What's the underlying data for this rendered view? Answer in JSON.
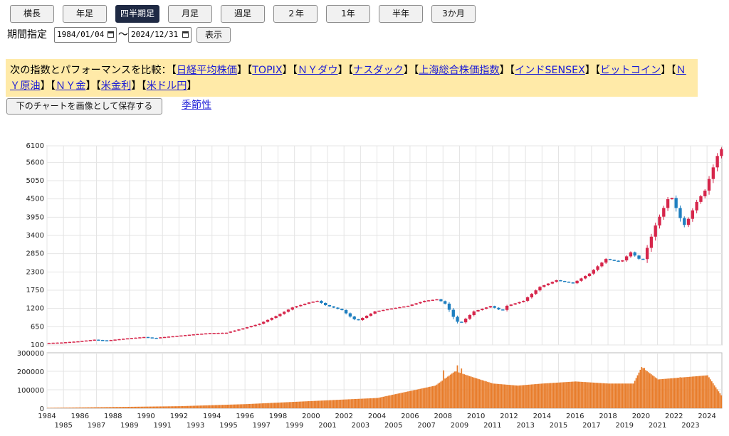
{
  "tabs": [
    {
      "label": "横長",
      "active": false
    },
    {
      "label": "年足",
      "active": false
    },
    {
      "label": "四半期足",
      "active": true
    },
    {
      "label": "月足",
      "active": false
    },
    {
      "label": "週足",
      "active": false
    },
    {
      "label": "２年",
      "active": false
    },
    {
      "label": "1年",
      "active": false
    },
    {
      "label": "半年",
      "active": false
    },
    {
      "label": "3か月",
      "active": false
    }
  ],
  "period": {
    "label": "期間指定",
    "start": "1984/01/04",
    "end": "2024/12/31",
    "separator": "〜",
    "show_button": "表示"
  },
  "compare": {
    "prefix": "次の指数とパフォーマンスを比較：",
    "links": [
      "日経平均株価",
      "TOPIX",
      "ＮＹダウ",
      "ナスダック",
      "上海総合株価指数",
      "インドSENSEX",
      "ビットコイン",
      "ＮＹ原油",
      "ＮＹ金",
      "米金利",
      "米ドル円"
    ]
  },
  "save_button": "下のチャートを画像として保存する",
  "seasonal_link": "季節性",
  "colors": {
    "up": "#d6264b",
    "down": "#1f7fc0",
    "volume": "#e87c2a",
    "active_tab": "#1f2a44",
    "compare_bg": "#ffeaa8",
    "link": "#1a1ad6"
  },
  "chart_data": {
    "type": "candlestick",
    "price_ticks": [
      100,
      650,
      1200,
      1750,
      2300,
      2850,
      3400,
      3950,
      4500,
      5050,
      5600,
      6100
    ],
    "price_range": [
      100,
      6100
    ],
    "volume_ticks": [
      "300000",
      "200000",
      "100000",
      "0"
    ],
    "volume_range": [
      0,
      300000
    ],
    "x_labels_top": [
      "1984",
      "1986",
      "1988",
      "1990",
      "1992",
      "1994",
      "1996",
      "1998",
      "2000",
      "2002",
      "2004",
      "2006",
      "2008",
      "2010",
      "2012",
      "2014",
      "2016",
      "2018",
      "2020",
      "2022",
      "2024"
    ],
    "x_labels_bottom": [
      "1985",
      "1987",
      "1989",
      "1991",
      "1993",
      "1995",
      "1997",
      "1999",
      "2001",
      "2003",
      "2005",
      "2007",
      "2009",
      "2011",
      "2013",
      "2015",
      "2017",
      "2019",
      "2021",
      "2023"
    ],
    "x_range": [
      1984,
      2024.9
    ],
    "grid": true,
    "price_path": [
      [
        1984.0,
        160
      ],
      [
        1985.0,
        175
      ],
      [
        1986.0,
        210
      ],
      [
        1987.0,
        260
      ],
      [
        1987.8,
        230
      ],
      [
        1988.0,
        250
      ],
      [
        1989.0,
        300
      ],
      [
        1990.0,
        340
      ],
      [
        1990.7,
        305
      ],
      [
        1991.0,
        330
      ],
      [
        1992.0,
        375
      ],
      [
        1993.0,
        420
      ],
      [
        1994.0,
        460
      ],
      [
        1995.0,
        470
      ],
      [
        1996.0,
        600
      ],
      [
        1997.0,
        740
      ],
      [
        1998.0,
        970
      ],
      [
        1999.0,
        1230
      ],
      [
        2000.0,
        1380
      ],
      [
        2000.5,
        1430
      ],
      [
        2001.0,
        1300
      ],
      [
        2002.0,
        1150
      ],
      [
        2002.7,
        880
      ],
      [
        2003.0,
        850
      ],
      [
        2004.0,
        1110
      ],
      [
        2005.0,
        1200
      ],
      [
        2006.0,
        1280
      ],
      [
        2007.0,
        1430
      ],
      [
        2007.8,
        1480
      ],
      [
        2008.3,
        1330
      ],
      [
        2008.9,
        820
      ],
      [
        2009.2,
        760
      ],
      [
        2010.0,
        1110
      ],
      [
        2011.0,
        1270
      ],
      [
        2011.7,
        1130
      ],
      [
        2012.0,
        1280
      ],
      [
        2013.0,
        1430
      ],
      [
        2014.0,
        1850
      ],
      [
        2015.0,
        2050
      ],
      [
        2015.8,
        1980
      ],
      [
        2016.0,
        1960
      ],
      [
        2017.0,
        2250
      ],
      [
        2018.0,
        2690
      ],
      [
        2018.9,
        2600
      ],
      [
        2019.5,
        2890
      ],
      [
        2020.2,
        2620
      ],
      [
        2021.0,
        3700
      ],
      [
        2021.9,
        4650
      ],
      [
        2022.7,
        3680
      ],
      [
        2023.0,
        3900
      ],
      [
        2023.5,
        4410
      ],
      [
        2024.0,
        4750
      ],
      [
        2024.5,
        5450
      ],
      [
        2024.9,
        6000
      ]
    ],
    "volume_path": [
      [
        1984.0,
        2000
      ],
      [
        1988.0,
        6000
      ],
      [
        1992.0,
        10000
      ],
      [
        1996.0,
        20000
      ],
      [
        2000.0,
        35000
      ],
      [
        2004.0,
        50000
      ],
      [
        2007.5,
        110000
      ],
      [
        2008.7,
        180000
      ],
      [
        2009.8,
        150000
      ],
      [
        2011.0,
        120000
      ],
      [
        2012.5,
        110000
      ],
      [
        2014.0,
        120000
      ],
      [
        2016.0,
        130000
      ],
      [
        2018.0,
        120000
      ],
      [
        2019.5,
        120000
      ],
      [
        2020.0,
        200000
      ],
      [
        2021.0,
        140000
      ],
      [
        2022.5,
        150000
      ],
      [
        2024.0,
        160000
      ],
      [
        2024.9,
        55000
      ]
    ],
    "volume_peaks": [
      [
        2008.0,
        205000
      ],
      [
        2008.8,
        232000
      ],
      [
        2009.1,
        215000
      ],
      [
        2020.15,
        218000
      ],
      [
        2022.3,
        168000
      ]
    ]
  }
}
